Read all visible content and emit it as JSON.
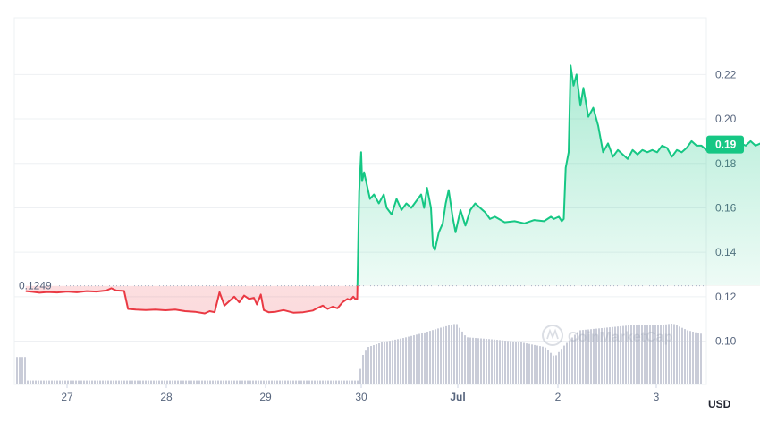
{
  "chart_data": {
    "type": "line",
    "x_unit": "date",
    "x_ticks": [
      "27",
      "28",
      "29",
      "30",
      "Jul",
      "2",
      "3"
    ],
    "y_ticks": [
      "0.10",
      "0.12",
      "0.14",
      "0.16",
      "0.18",
      "0.20",
      "0.22"
    ],
    "ylim": [
      0.0805,
      0.2455
    ],
    "currency_label": "USD",
    "baseline_value": 0.1249,
    "baseline_label": "0.1249",
    "current_value": 0.1885,
    "current_label": "0.19",
    "watermark": "CoinMarketCap",
    "grid": true,
    "colors": {
      "up": "#16c784",
      "down": "#ea3943",
      "volume": "#c9ccd8",
      "grid": "#eef0f3",
      "axis_text": "#58667e"
    },
    "price_series": [
      [
        26.58,
        0.1225
      ],
      [
        26.65,
        0.1222
      ],
      [
        26.72,
        0.1218
      ],
      [
        26.8,
        0.1221
      ],
      [
        26.9,
        0.1219
      ],
      [
        27.0,
        0.1223
      ],
      [
        27.1,
        0.122
      ],
      [
        27.2,
        0.1225
      ],
      [
        27.3,
        0.1223
      ],
      [
        27.4,
        0.1228
      ],
      [
        27.45,
        0.1238
      ],
      [
        27.5,
        0.1228
      ],
      [
        27.58,
        0.1226
      ],
      [
        27.62,
        0.1145
      ],
      [
        27.7,
        0.1142
      ],
      [
        27.8,
        0.114
      ],
      [
        27.9,
        0.1142
      ],
      [
        28.0,
        0.1139
      ],
      [
        28.1,
        0.1142
      ],
      [
        28.2,
        0.1135
      ],
      [
        28.3,
        0.1132
      ],
      [
        28.4,
        0.1125
      ],
      [
        28.45,
        0.1135
      ],
      [
        28.5,
        0.113
      ],
      [
        28.55,
        0.122
      ],
      [
        28.6,
        0.116
      ],
      [
        28.65,
        0.118
      ],
      [
        28.7,
        0.12
      ],
      [
        28.75,
        0.1175
      ],
      [
        28.8,
        0.1205
      ],
      [
        28.85,
        0.119
      ],
      [
        28.9,
        0.1195
      ],
      [
        28.93,
        0.1165
      ],
      [
        28.97,
        0.121
      ],
      [
        29.0,
        0.114
      ],
      [
        29.05,
        0.113
      ],
      [
        29.12,
        0.1132
      ],
      [
        29.2,
        0.114
      ],
      [
        29.3,
        0.1128
      ],
      [
        29.4,
        0.113
      ],
      [
        29.5,
        0.1138
      ],
      [
        29.55,
        0.115
      ],
      [
        29.6,
        0.116
      ],
      [
        29.65,
        0.1145
      ],
      [
        29.7,
        0.1155
      ],
      [
        29.75,
        0.1148
      ],
      [
        29.8,
        0.1175
      ],
      [
        29.85,
        0.119
      ],
      [
        29.88,
        0.1185
      ],
      [
        29.91,
        0.12
      ],
      [
        29.93,
        0.119
      ],
      [
        29.95,
        0.119
      ],
      [
        29.97,
        0.167
      ],
      [
        29.99,
        0.185
      ],
      [
        30.0,
        0.172
      ],
      [
        30.02,
        0.176
      ],
      [
        30.05,
        0.17
      ],
      [
        30.08,
        0.164
      ],
      [
        30.12,
        0.166
      ],
      [
        30.17,
        0.162
      ],
      [
        30.22,
        0.166
      ],
      [
        30.25,
        0.16
      ],
      [
        30.3,
        0.157
      ],
      [
        30.35,
        0.164
      ],
      [
        30.4,
        0.159
      ],
      [
        30.45,
        0.162
      ],
      [
        30.5,
        0.16
      ],
      [
        30.55,
        0.163
      ],
      [
        30.6,
        0.166
      ],
      [
        30.63,
        0.16
      ],
      [
        30.66,
        0.169
      ],
      [
        30.7,
        0.16
      ],
      [
        30.72,
        0.143
      ],
      [
        30.74,
        0.141
      ],
      [
        30.78,
        0.149
      ],
      [
        30.82,
        0.153
      ],
      [
        30.85,
        0.162
      ],
      [
        30.88,
        0.168
      ],
      [
        30.92,
        0.156
      ],
      [
        30.95,
        0.149
      ],
      [
        31.0,
        0.159
      ],
      [
        31.05,
        0.152
      ],
      [
        31.1,
        0.159
      ],
      [
        31.15,
        0.162
      ],
      [
        31.2,
        0.16
      ],
      [
        31.25,
        0.158
      ],
      [
        31.3,
        0.155
      ],
      [
        31.35,
        0.156
      ],
      [
        31.45,
        0.1535
      ],
      [
        31.55,
        0.154
      ],
      [
        31.65,
        0.153
      ],
      [
        31.75,
        0.1545
      ],
      [
        31.85,
        0.154
      ],
      [
        31.92,
        0.156
      ],
      [
        31.95,
        0.155
      ],
      [
        32.0,
        0.156
      ],
      [
        32.03,
        0.154
      ],
      [
        32.05,
        0.155
      ],
      [
        32.07,
        0.178
      ],
      [
        32.1,
        0.185
      ],
      [
        32.12,
        0.224
      ],
      [
        32.15,
        0.215
      ],
      [
        32.18,
        0.22
      ],
      [
        32.22,
        0.206
      ],
      [
        32.25,
        0.214
      ],
      [
        32.3,
        0.201
      ],
      [
        32.35,
        0.205
      ],
      [
        32.4,
        0.197
      ],
      [
        32.45,
        0.185
      ],
      [
        32.5,
        0.189
      ],
      [
        32.55,
        0.183
      ],
      [
        32.6,
        0.186
      ],
      [
        32.65,
        0.184
      ],
      [
        32.7,
        0.182
      ],
      [
        32.75,
        0.186
      ],
      [
        32.8,
        0.184
      ],
      [
        32.85,
        0.186
      ],
      [
        32.9,
        0.185
      ],
      [
        32.95,
        0.186
      ],
      [
        33.0,
        0.185
      ],
      [
        33.05,
        0.188
      ],
      [
        33.1,
        0.187
      ],
      [
        33.15,
        0.183
      ],
      [
        33.2,
        0.186
      ],
      [
        33.25,
        0.185
      ],
      [
        33.3,
        0.187
      ],
      [
        33.35,
        0.19
      ],
      [
        33.4,
        0.188
      ],
      [
        33.45,
        0.188
      ],
      [
        33.5,
        0.186
      ],
      [
        33.55,
        0.188
      ],
      [
        33.6,
        0.189
      ],
      [
        33.65,
        0.189
      ],
      [
        33.7,
        0.186
      ],
      [
        33.75,
        0.19
      ],
      [
        33.8,
        0.188
      ],
      [
        33.85,
        0.189
      ],
      [
        33.9,
        0.188
      ],
      [
        33.95,
        0.19
      ],
      [
        34.0,
        0.188
      ],
      [
        34.05,
        0.189
      ],
      [
        34.1,
        0.188
      ],
      [
        34.15,
        0.189
      ],
      [
        34.2,
        0.187
      ],
      [
        34.25,
        0.188
      ],
      [
        34.3,
        0.19
      ],
      [
        34.35,
        0.188
      ],
      [
        34.4,
        0.1885
      ]
    ],
    "volume_relative": [
      [
        26.58,
        0.04
      ],
      [
        29.95,
        0.04
      ],
      [
        30.0,
        0.3
      ],
      [
        30.05,
        0.38
      ],
      [
        30.2,
        0.43
      ],
      [
        30.4,
        0.47
      ],
      [
        30.6,
        0.52
      ],
      [
        30.8,
        0.58
      ],
      [
        30.95,
        0.62
      ],
      [
        31.0,
        0.55
      ],
      [
        31.05,
        0.48
      ],
      [
        31.3,
        0.46
      ],
      [
        31.6,
        0.43
      ],
      [
        31.85,
        0.38
      ],
      [
        31.95,
        0.28
      ],
      [
        32.05,
        0.4
      ],
      [
        32.2,
        0.55
      ],
      [
        32.5,
        0.58
      ],
      [
        32.8,
        0.61
      ],
      [
        33.0,
        0.6
      ],
      [
        33.15,
        0.62
      ],
      [
        33.3,
        0.55
      ],
      [
        33.5,
        0.5
      ],
      [
        33.7,
        0.45
      ],
      [
        33.9,
        0.4
      ],
      [
        34.1,
        0.33
      ],
      [
        34.25,
        0.29
      ],
      [
        34.4,
        0.28
      ]
    ]
  }
}
